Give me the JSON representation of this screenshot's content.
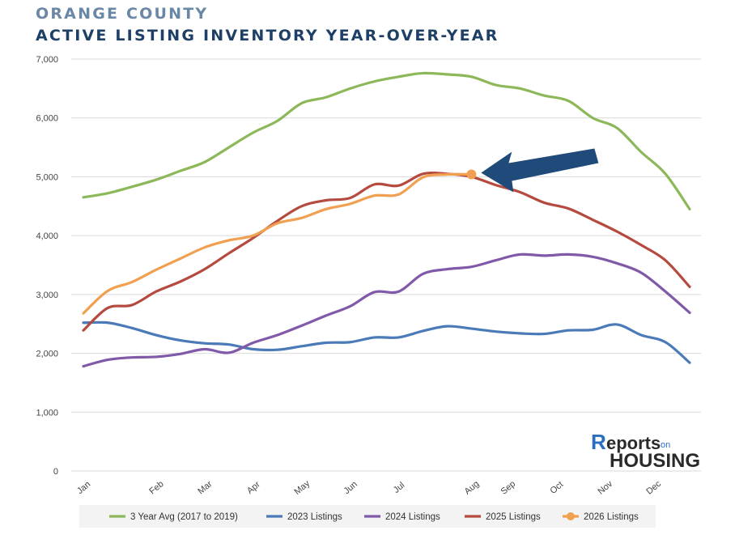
{
  "header": {
    "county": "ORANGE COUNTY",
    "title": "ACTIVE LISTING INVENTORY YEAR-OVER-YEAR"
  },
  "logo": {
    "top": "eports",
    "top_initial": "R",
    "on": "on",
    "bottom": "HOUSING"
  },
  "chart_data": {
    "type": "line",
    "title": "ACTIVE LISTING INVENTORY YEAR-OVER-YEAR",
    "xlabel": "",
    "ylabel": "",
    "ylim": [
      0,
      7000
    ],
    "yticks": [
      0,
      1000,
      2000,
      3000,
      4000,
      5000,
      6000,
      7000
    ],
    "ytick_labels": [
      "0",
      "1,000",
      "2,000",
      "3,000",
      "4,000",
      "5,000",
      "6,000",
      "7,000"
    ],
    "x_tick_labels": [
      "Jan",
      "Feb",
      "Mar",
      "Apr",
      "May",
      "Jun",
      "Jul",
      "Aug",
      "Sep",
      "Oct",
      "Nov",
      "Dec"
    ],
    "x_tick_positions": [
      0,
      1.5,
      2.5,
      3.5,
      4.5,
      5.5,
      6.5,
      8,
      8.75,
      9.75,
      10.75,
      11.75
    ],
    "x_range": [
      0,
      12.5
    ],
    "grid": true,
    "legend_position": "bottom",
    "series": [
      {
        "name": "3 Year Avg (2017 to 2019)",
        "color": "#8db85a",
        "x": [
          0,
          0.5,
          1,
          1.5,
          2,
          2.5,
          3,
          3.5,
          4,
          4.5,
          5,
          5.5,
          6,
          6.5,
          7,
          7.5,
          8,
          8.5,
          9,
          9.5,
          10,
          10.5,
          11,
          11.5,
          12,
          12.5
        ],
        "values": [
          4650,
          4720,
          4830,
          4950,
          5100,
          5250,
          5500,
          5750,
          5950,
          6250,
          6350,
          6500,
          6620,
          6700,
          6760,
          6740,
          6700,
          6560,
          6500,
          6380,
          6290,
          6000,
          5830,
          5420,
          5050,
          4450
        ]
      },
      {
        "name": "2023 Listings",
        "color": "#4a7ab8",
        "x": [
          0,
          0.5,
          1,
          1.5,
          2,
          2.5,
          3,
          3.5,
          4,
          4.5,
          5,
          5.5,
          6,
          6.5,
          7,
          7.5,
          8,
          8.5,
          9,
          9.5,
          10,
          10.5,
          11,
          11.5,
          12,
          12.5
        ],
        "values": [
          2520,
          2520,
          2430,
          2310,
          2220,
          2170,
          2150,
          2070,
          2060,
          2120,
          2180,
          2190,
          2270,
          2270,
          2380,
          2460,
          2420,
          2370,
          2340,
          2330,
          2390,
          2400,
          2490,
          2310,
          2190,
          1840
        ]
      },
      {
        "name": "2024 Listings",
        "color": "#8059a8",
        "x": [
          0,
          0.5,
          1,
          1.5,
          2,
          2.5,
          3,
          3.5,
          4,
          4.5,
          5,
          5.5,
          6,
          6.5,
          7,
          7.5,
          8,
          8.5,
          9,
          9.5,
          10,
          10.5,
          11,
          11.5,
          12,
          12.5
        ],
        "values": [
          1780,
          1890,
          1930,
          1940,
          1990,
          2070,
          2010,
          2180,
          2310,
          2470,
          2640,
          2800,
          3040,
          3050,
          3350,
          3430,
          3470,
          3580,
          3680,
          3660,
          3680,
          3640,
          3530,
          3370,
          3050,
          2690
        ]
      },
      {
        "name": "2025 Listings",
        "color": "#b54a3f",
        "x": [
          0,
          0.5,
          1,
          1.5,
          2,
          2.5,
          3,
          3.5,
          4,
          4.5,
          5,
          5.5,
          6,
          6.5,
          7,
          7.5,
          8,
          8.5,
          9,
          9.5,
          10,
          10.5,
          11,
          11.5,
          12,
          12.5
        ],
        "values": [
          2390,
          2770,
          2820,
          3050,
          3220,
          3430,
          3700,
          3960,
          4250,
          4500,
          4600,
          4640,
          4870,
          4850,
          5050,
          5050,
          5000,
          4860,
          4740,
          4560,
          4460,
          4270,
          4070,
          3840,
          3580,
          3130
        ]
      },
      {
        "name": "2026 Listings",
        "color": "#f0a050",
        "marker_last": true,
        "x": [
          0,
          0.5,
          1,
          1.5,
          2,
          2.5,
          3,
          3.5,
          4,
          4.5,
          5,
          5.5,
          6,
          6.5,
          7,
          7.5,
          8
        ],
        "values": [
          2680,
          3060,
          3210,
          3420,
          3610,
          3800,
          3920,
          4000,
          4210,
          4300,
          4450,
          4540,
          4680,
          4700,
          4990,
          5040,
          5040
        ]
      }
    ],
    "annotation": {
      "type": "arrow",
      "color": "#1f4a7a",
      "target_series": "2026 Listings",
      "target_x": 8,
      "target_y": 5040
    }
  }
}
